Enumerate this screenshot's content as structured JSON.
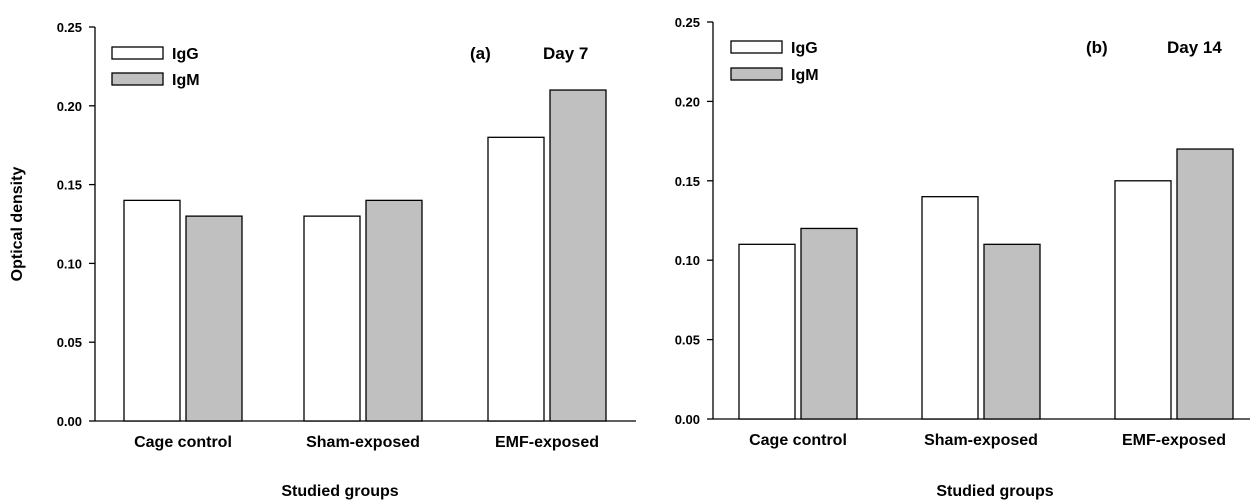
{
  "colors": {
    "IgG": "#ffffff",
    "IgM": "#c0c0c0",
    "axis": "#000000"
  },
  "chart_data": [
    {
      "type": "bar",
      "panel_label": "(a)",
      "title": "Day 7",
      "ylabel": "Optical density",
      "xlabel": "Studied groups",
      "ylim": [
        0,
        0.25
      ],
      "yticks": [
        "0.00",
        "0.05",
        "0.10",
        "0.15",
        "0.20",
        "0.25"
      ],
      "categories": [
        "Cage control",
        "Sham-exposed",
        "EMF-exposed"
      ],
      "series": [
        {
          "name": "IgG",
          "values": [
            0.14,
            0.13,
            0.18
          ]
        },
        {
          "name": "IgM",
          "values": [
            0.13,
            0.14,
            0.21
          ]
        }
      ],
      "legend": "top-left",
      "grid": false
    },
    {
      "type": "bar",
      "panel_label": "(b)",
      "title": "Day 14",
      "ylabel": "",
      "xlabel": "Studied groups",
      "ylim": [
        0,
        0.25
      ],
      "yticks": [
        "0.00",
        "0.05",
        "0.10",
        "0.15",
        "0.20",
        "0.25"
      ],
      "categories": [
        "Cage control",
        "Sham-exposed",
        "EMF-exposed"
      ],
      "series": [
        {
          "name": "IgG",
          "values": [
            0.11,
            0.14,
            0.15
          ]
        },
        {
          "name": "IgM",
          "values": [
            0.12,
            0.11,
            0.17
          ]
        }
      ],
      "legend": "top-left",
      "grid": false
    }
  ]
}
